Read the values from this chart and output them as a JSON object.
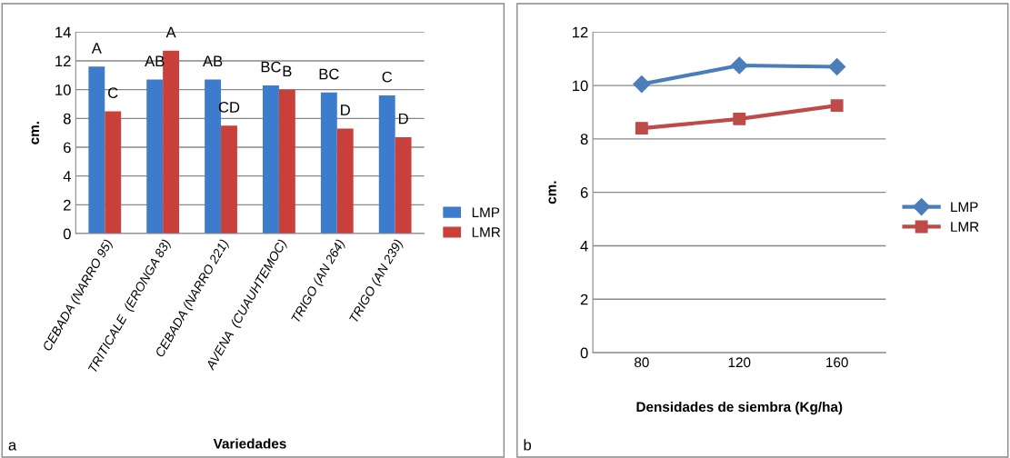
{
  "chart_data": [
    {
      "type": "bar",
      "categories": [
        "CEBADA (NARRO 95)",
        "TRITICALE  (ERONGA 83)",
        "CEBADA (NARRO 221)",
        "AVENA  (CUAUHTEMOC)",
        "TRIGO (AN 264)",
        "TRIGO (AN 239)"
      ],
      "series": [
        {
          "name": "LMP",
          "color": "#3d7ccc",
          "values": [
            11.6,
            10.7,
            10.7,
            10.3,
            9.8,
            9.6
          ],
          "value_labels": [
            "A",
            "AB",
            "AB",
            "BC",
            "BC",
            "C"
          ]
        },
        {
          "name": "LMR",
          "color": "#c9403b",
          "values": [
            8.5,
            12.7,
            7.5,
            10.0,
            7.3,
            6.7
          ],
          "value_labels": [
            "C",
            "A",
            "CD",
            "B",
            "D",
            "D"
          ]
        }
      ],
      "xlabel": "Variedades",
      "ylabel": "cm.",
      "ylim": [
        0,
        14
      ],
      "yticks": [
        0,
        2,
        4,
        6,
        8,
        10,
        12,
        14
      ],
      "grid": "y",
      "legend": "right",
      "annotations": [
        "a"
      ]
    },
    {
      "type": "line",
      "categories": [
        "80",
        "120",
        "160"
      ],
      "series": [
        {
          "name": "LMP",
          "color": "#4a7ebb",
          "values": [
            10.05,
            10.75,
            10.7
          ],
          "marker": "diamond"
        },
        {
          "name": "LMR",
          "color": "#be4b48",
          "values": [
            8.4,
            8.75,
            9.25
          ],
          "marker": "square"
        }
      ],
      "xlabel": "Densidades de siembra (Kg/ha)",
      "ylabel": "cm.",
      "ylim": [
        0,
        12
      ],
      "yticks": [
        0,
        2,
        4,
        6,
        8,
        10,
        12
      ],
      "grid": "y",
      "legend": "right",
      "line_style": "solid",
      "annotations": [
        "b"
      ]
    }
  ]
}
